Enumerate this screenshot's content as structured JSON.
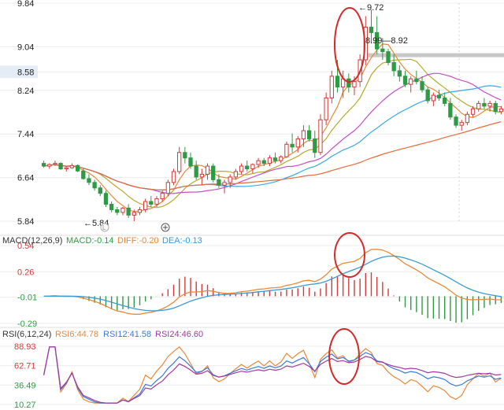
{
  "chart_data": {
    "type": "candlestick",
    "colors": {
      "up": "#d43a3a",
      "down": "#2f9a45",
      "ma5": "#e8883a",
      "ma10": "#b8a830",
      "ma20": "#c44fc4",
      "ma30": "#3aa8e0",
      "ma60": "#e8693a",
      "macd_pos": "#d43a3a",
      "macd_neg": "#2f9a45",
      "diff": "#e8883a",
      "dea": "#3a9ad4",
      "rsi6": "#e8883a",
      "rsi12": "#3a7ad4",
      "rsi24": "#a03aa0",
      "highlight": "#d42a2a",
      "price_band": "#c8c8c8",
      "grid": "#ececec"
    },
    "price_panel": {
      "y_ticks": [
        "9.84",
        "9.04",
        "8.58",
        "8.24",
        "7.44",
        "6.64",
        "5.84"
      ],
      "ylim": [
        5.84,
        9.84
      ],
      "highlighted_tick": "8.58",
      "annotations": {
        "high": "←9.72",
        "low": "←5.84",
        "range": "8.99—8.92"
      },
      "band_price": 8.95,
      "candles": [
        [
          6.9,
          6.95,
          6.82,
          6.85
        ],
        [
          6.85,
          6.9,
          6.8,
          6.88
        ],
        [
          6.88,
          6.95,
          6.85,
          6.9
        ],
        [
          6.9,
          6.92,
          6.78,
          6.8
        ],
        [
          6.8,
          6.85,
          6.75,
          6.82
        ],
        [
          6.82,
          6.9,
          6.8,
          6.86
        ],
        [
          6.86,
          6.88,
          6.74,
          6.76
        ],
        [
          6.76,
          6.8,
          6.6,
          6.62
        ],
        [
          6.62,
          6.7,
          6.5,
          6.55
        ],
        [
          6.55,
          6.6,
          6.4,
          6.45
        ],
        [
          6.45,
          6.5,
          6.3,
          6.35
        ],
        [
          6.35,
          6.4,
          6.1,
          6.15
        ],
        [
          6.15,
          6.2,
          6.0,
          6.05
        ],
        [
          6.05,
          6.1,
          5.95,
          6.0
        ],
        [
          6.0,
          6.1,
          5.95,
          6.08
        ],
        [
          6.08,
          6.15,
          5.9,
          5.95
        ],
        [
          5.95,
          6.05,
          5.84,
          6.0
        ],
        [
          6.0,
          6.1,
          5.95,
          6.05
        ],
        [
          6.05,
          6.25,
          6.0,
          6.2
        ],
        [
          6.2,
          6.3,
          6.1,
          6.15
        ],
        [
          6.15,
          6.3,
          6.1,
          6.25
        ],
        [
          6.25,
          6.4,
          6.2,
          6.35
        ],
        [
          6.35,
          6.6,
          6.3,
          6.55
        ],
        [
          6.55,
          6.8,
          6.5,
          6.75
        ],
        [
          6.75,
          7.2,
          6.7,
          7.1
        ],
        [
          7.1,
          7.2,
          6.9,
          7.0
        ],
        [
          7.0,
          7.1,
          6.8,
          6.85
        ],
        [
          6.85,
          6.95,
          6.6,
          6.65
        ],
        [
          6.65,
          6.8,
          6.5,
          6.7
        ],
        [
          6.7,
          6.9,
          6.6,
          6.85
        ],
        [
          6.85,
          6.9,
          6.55,
          6.6
        ],
        [
          6.6,
          6.7,
          6.45,
          6.5
        ],
        [
          6.5,
          6.6,
          6.35,
          6.55
        ],
        [
          6.55,
          6.7,
          6.45,
          6.65
        ],
        [
          6.65,
          6.8,
          6.6,
          6.75
        ],
        [
          6.75,
          6.9,
          6.7,
          6.85
        ],
        [
          6.85,
          6.95,
          6.75,
          6.8
        ],
        [
          6.8,
          6.9,
          6.72,
          6.88
        ],
        [
          6.88,
          7.0,
          6.82,
          6.95
        ],
        [
          6.95,
          7.0,
          6.85,
          6.9
        ],
        [
          6.9,
          7.05,
          6.85,
          7.0
        ],
        [
          7.0,
          7.1,
          6.9,
          6.95
        ],
        [
          6.95,
          7.05,
          6.9,
          7.02
        ],
        [
          7.02,
          7.3,
          7.0,
          7.25
        ],
        [
          7.25,
          7.45,
          7.1,
          7.2
        ],
        [
          7.2,
          7.4,
          7.1,
          7.35
        ],
        [
          7.35,
          7.6,
          7.2,
          7.5
        ],
        [
          7.5,
          7.6,
          7.3,
          7.35
        ],
        [
          7.35,
          7.5,
          7.0,
          7.1
        ],
        [
          7.1,
          7.8,
          7.05,
          7.7
        ],
        [
          7.7,
          8.2,
          7.6,
          8.1
        ],
        [
          8.1,
          8.6,
          8.0,
          8.5
        ],
        [
          8.5,
          8.8,
          8.2,
          8.3
        ],
        [
          8.3,
          8.6,
          8.1,
          8.45
        ],
        [
          8.45,
          8.55,
          8.2,
          8.3
        ],
        [
          8.3,
          8.5,
          8.15,
          8.4
        ],
        [
          8.4,
          8.9,
          8.3,
          8.8
        ],
        [
          8.8,
          9.6,
          8.7,
          9.4
        ],
        [
          9.4,
          9.72,
          9.1,
          9.3
        ],
        [
          9.3,
          9.6,
          8.9,
          9.0
        ],
        [
          9.0,
          9.2,
          8.8,
          8.95
        ],
        [
          8.95,
          9.0,
          8.7,
          8.75
        ],
        [
          8.75,
          8.9,
          8.5,
          8.6
        ],
        [
          8.6,
          8.7,
          8.4,
          8.5
        ],
        [
          8.5,
          8.6,
          8.3,
          8.35
        ],
        [
          8.35,
          8.5,
          8.2,
          8.45
        ],
        [
          8.45,
          8.6,
          8.35,
          8.4
        ],
        [
          8.4,
          8.5,
          8.2,
          8.25
        ],
        [
          8.25,
          8.3,
          8.0,
          8.05
        ],
        [
          8.05,
          8.2,
          7.95,
          8.15
        ],
        [
          8.15,
          8.25,
          8.05,
          8.1
        ],
        [
          8.1,
          8.2,
          7.95,
          8.0
        ],
        [
          8.0,
          8.1,
          7.7,
          7.75
        ],
        [
          7.75,
          7.8,
          7.55,
          7.6
        ],
        [
          7.6,
          7.7,
          7.5,
          7.65
        ],
        [
          7.65,
          7.85,
          7.6,
          7.8
        ],
        [
          7.8,
          7.95,
          7.75,
          7.9
        ],
        [
          7.9,
          8.05,
          7.85,
          8.0
        ],
        [
          8.0,
          8.1,
          7.9,
          7.95
        ],
        [
          7.95,
          8.05,
          7.85,
          8.0
        ],
        [
          8.0,
          8.05,
          7.8,
          7.85
        ],
        [
          7.85,
          7.95,
          7.8,
          7.9
        ]
      ]
    },
    "macd_panel": {
      "label": "MACD(12,26,9)",
      "values": {
        "macd": "MACD:-0.14",
        "diff": "DIFF:-0.20",
        "dea": "DEA:-0.13"
      },
      "y_ticks": [
        "0.54",
        "0.26",
        "-0.01",
        "-0.29"
      ],
      "ylim": [
        -0.29,
        0.54
      ]
    },
    "rsi_panel": {
      "label": "RSI(6,12,24)",
      "values": {
        "rsi6": "RSI6:44.78",
        "rsi12": "RSI12:41.58",
        "rsi24": "RSI24:46.60"
      },
      "y_ticks": [
        "88.93",
        "62.71",
        "36.49",
        "10.27"
      ],
      "ylim": [
        10.27,
        88.93
      ]
    }
  }
}
